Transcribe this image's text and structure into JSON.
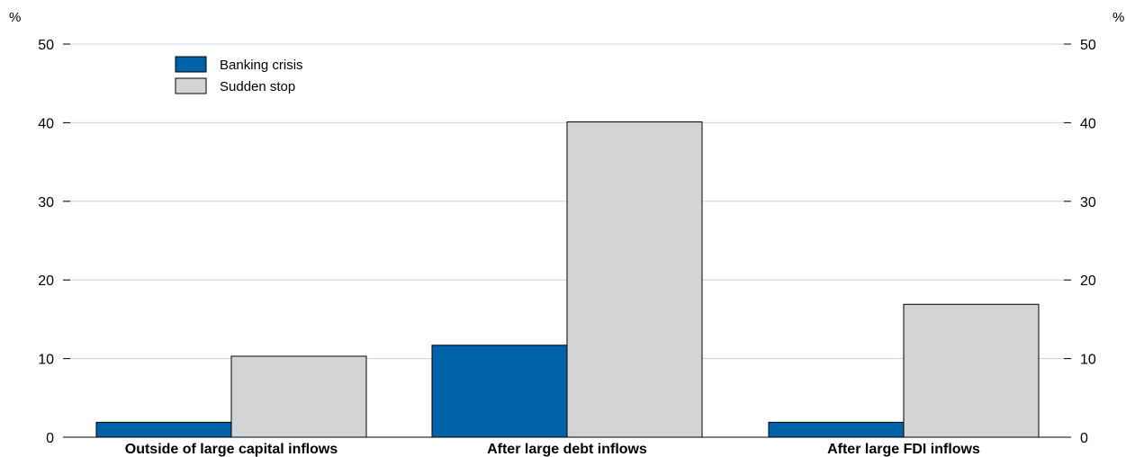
{
  "chart_data": {
    "type": "bar",
    "title": "",
    "xlabel": "",
    "ylabel": "",
    "unit_left": "%",
    "unit_right": "%",
    "ylim": [
      0,
      50
    ],
    "yticks": [
      0,
      10,
      20,
      30,
      40,
      50
    ],
    "grid": true,
    "legend_position": "top-left",
    "categories": [
      "Outside of large capital inflows",
      "After large debt inflows",
      "After large FDI inflows"
    ],
    "series": [
      {
        "name": "Banking crisis",
        "color": "#0062a8",
        "values": [
          1.9,
          11.7,
          1.9
        ]
      },
      {
        "name": "Sudden stop",
        "color": "#d3d4d6",
        "values": [
          10.3,
          40.1,
          16.9
        ]
      }
    ]
  }
}
